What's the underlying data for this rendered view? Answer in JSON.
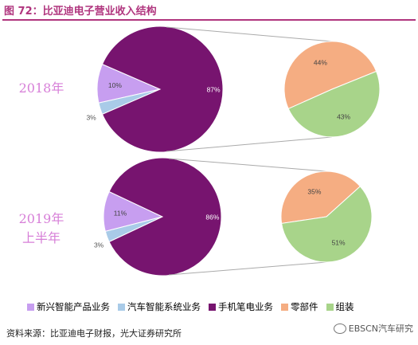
{
  "figure": {
    "title": "图 72：比亚迪电子营业收入结构",
    "source": "资料来源：比亚迪电子财报，光大证券研究所",
    "watermark": "EBSCN汽车研究"
  },
  "chart_data": [
    {
      "type": "pie",
      "title": "2018年",
      "slices": [
        {
          "name": "新兴智能产品业务",
          "value": 10,
          "label": "10%",
          "color": "#c79ef0"
        },
        {
          "name": "汽车智能系统业务",
          "value": 3,
          "label": "3%",
          "color": "#a9cbe8"
        },
        {
          "name": "手机笔电业务",
          "value": 87,
          "label": "87%",
          "color": "#77146f"
        }
      ],
      "breakdown": {
        "of": "手机笔电业务",
        "slices": [
          {
            "name": "零部件",
            "value": 44,
            "label": "44%",
            "color": "#f5ad82"
          },
          {
            "name": "组装",
            "value": 43,
            "label": "43%",
            "color": "#a8d48a"
          }
        ]
      }
    },
    {
      "type": "pie",
      "title": "2019年上半年",
      "title_lines": [
        "2019年",
        "上半年"
      ],
      "slices": [
        {
          "name": "新兴智能产品业务",
          "value": 11,
          "label": "11%",
          "color": "#c79ef0"
        },
        {
          "name": "汽车智能系统业务",
          "value": 3,
          "label": "3%",
          "color": "#a9cbe8"
        },
        {
          "name": "手机笔电业务",
          "value": 86,
          "label": "86%",
          "color": "#77146f"
        }
      ],
      "breakdown": {
        "of": "手机笔电业务",
        "slices": [
          {
            "name": "零部件",
            "value": 35,
            "label": "35%",
            "color": "#f5ad82"
          },
          {
            "name": "组装",
            "value": 51,
            "label": "51%",
            "color": "#a8d48a"
          }
        ]
      }
    }
  ],
  "legend": [
    {
      "label": "新兴智能产品业务",
      "color": "#c79ef0"
    },
    {
      "label": "汽车智能系统业务",
      "color": "#a9cbe8"
    },
    {
      "label": "手机笔电业务",
      "color": "#77146f"
    },
    {
      "label": "零部件",
      "color": "#f5ad82"
    },
    {
      "label": "组装",
      "color": "#a8d48a"
    }
  ]
}
